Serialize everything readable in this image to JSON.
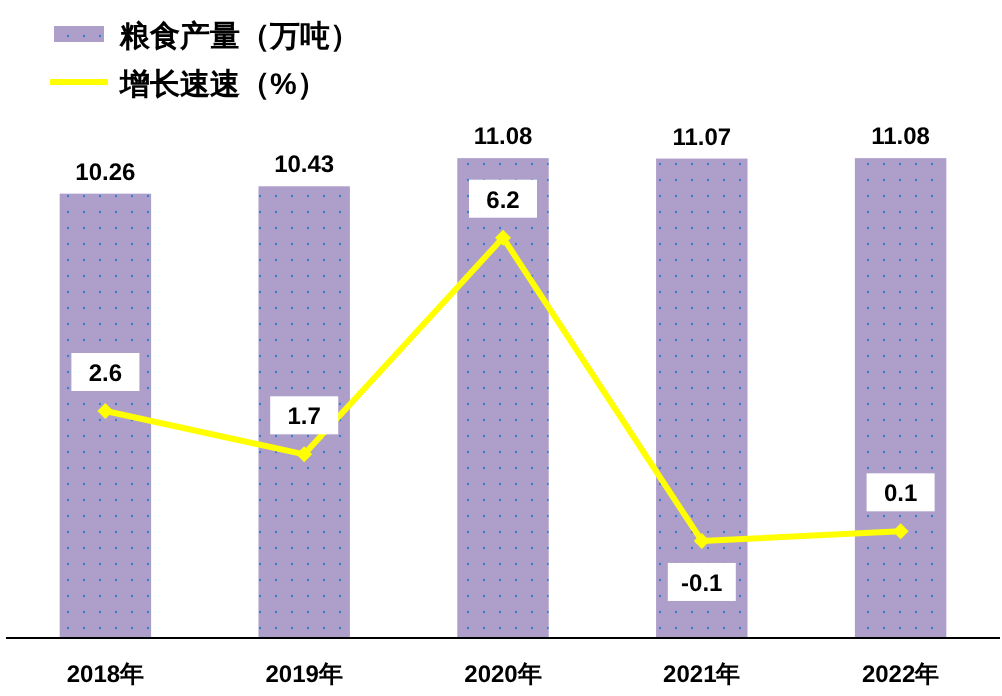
{
  "chart_data": {
    "type": "bar",
    "categories": [
      "2018年",
      "2019年",
      "2020年",
      "2021年",
      "2022年"
    ],
    "series": [
      {
        "name": "粮食产量（万吨）",
        "color": "#ae9fca",
        "values": [
          10.26,
          10.43,
          11.08,
          11.07,
          11.08
        ]
      },
      {
        "name": "增长速速（%）",
        "type": "line",
        "axis": "y2",
        "color": "#ffff00",
        "marker": "diamond",
        "values": [
          2.6,
          1.7,
          6.2,
          -0.1,
          0.1
        ]
      }
    ],
    "tick_labels": "x",
    "data_labels": true,
    "legend": "top left"
  }
}
